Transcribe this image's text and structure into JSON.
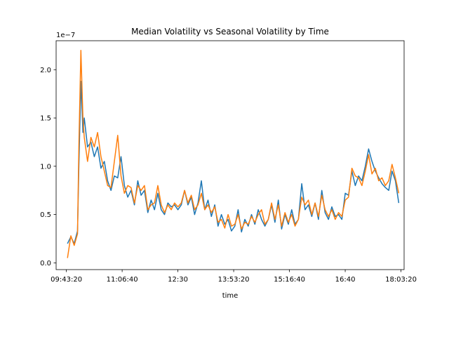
{
  "chart_data": {
    "type": "line",
    "title": "Median Volatility vs Seasonal Volatility by Time",
    "xlabel": "time",
    "ylabel": "",
    "y_scale_text": "1e−7",
    "grid": false,
    "legend": "none",
    "xlim": [
      "09:28:00",
      "18:08:00"
    ],
    "ylim": [
      -0.07,
      2.3
    ],
    "xticks": [
      "09:43:20",
      "11:06:40",
      "12:30",
      "13:53:20",
      "15:16:40",
      "16:40",
      "18:03:20"
    ],
    "yticks": [
      "0.0",
      "0.5",
      "1.0",
      "1.5",
      "2.0"
    ],
    "colors": [
      "#1f77b4",
      "#ff7f0e"
    ],
    "x": [
      "09:45",
      "09:50",
      "09:55",
      "10:00",
      "10:02",
      "10:05",
      "10:08",
      "10:10",
      "10:15",
      "10:20",
      "10:25",
      "10:30",
      "10:35",
      "10:40",
      "10:45",
      "10:50",
      "10:55",
      "11:00",
      "11:05",
      "11:10",
      "11:15",
      "11:20",
      "11:25",
      "11:30",
      "11:35",
      "11:40",
      "11:45",
      "11:50",
      "11:55",
      "12:00",
      "12:05",
      "12:10",
      "12:15",
      "12:20",
      "12:25",
      "12:30",
      "12:35",
      "12:40",
      "12:45",
      "12:50",
      "12:55",
      "13:00",
      "13:05",
      "13:10",
      "13:15",
      "13:20",
      "13:25",
      "13:30",
      "13:35",
      "13:40",
      "13:45",
      "13:50",
      "13:55",
      "14:00",
      "14:05",
      "14:10",
      "14:15",
      "14:20",
      "14:25",
      "14:30",
      "14:35",
      "14:40",
      "14:45",
      "14:50",
      "14:55",
      "15:00",
      "15:05",
      "15:10",
      "15:15",
      "15:20",
      "15:25",
      "15:30",
      "15:35",
      "15:40",
      "15:45",
      "15:50",
      "15:55",
      "16:00",
      "16:05",
      "16:10",
      "16:15",
      "16:20",
      "16:25",
      "16:30",
      "16:35",
      "16:40",
      "16:45",
      "16:50",
      "16:55",
      "17:00",
      "17:05",
      "17:10",
      "17:15",
      "17:20",
      "17:25",
      "17:30",
      "17:35",
      "17:40",
      "17:45",
      "17:50",
      "17:55",
      "18:00"
    ],
    "series": [
      {
        "values": [
          0.2,
          0.27,
          0.2,
          0.33,
          1.0,
          1.88,
          1.35,
          1.5,
          1.2,
          1.25,
          1.1,
          1.2,
          0.98,
          1.05,
          0.85,
          0.75,
          0.9,
          0.88,
          1.1,
          0.8,
          0.68,
          0.75,
          0.6,
          0.85,
          0.7,
          0.75,
          0.52,
          0.65,
          0.55,
          0.72,
          0.55,
          0.5,
          0.62,
          0.58,
          0.6,
          0.55,
          0.6,
          0.75,
          0.6,
          0.68,
          0.5,
          0.62,
          0.85,
          0.55,
          0.65,
          0.48,
          0.6,
          0.38,
          0.5,
          0.4,
          0.45,
          0.33,
          0.38,
          0.55,
          0.32,
          0.45,
          0.38,
          0.5,
          0.4,
          0.55,
          0.45,
          0.38,
          0.45,
          0.6,
          0.42,
          0.65,
          0.35,
          0.5,
          0.4,
          0.55,
          0.4,
          0.45,
          0.82,
          0.55,
          0.6,
          0.48,
          0.62,
          0.45,
          0.75,
          0.52,
          0.45,
          0.58,
          0.48,
          0.5,
          0.45,
          0.72,
          0.7,
          0.95,
          0.8,
          0.9,
          0.85,
          1.0,
          1.18,
          1.05,
          0.95,
          0.88,
          0.82,
          0.78,
          0.75,
          0.95,
          0.85,
          0.62
        ]
      },
      {
        "values": [
          0.05,
          0.28,
          0.18,
          0.3,
          1.2,
          2.2,
          1.5,
          1.3,
          1.05,
          1.3,
          1.2,
          1.35,
          1.1,
          0.95,
          0.8,
          0.78,
          1.05,
          1.32,
          0.9,
          0.72,
          0.8,
          0.78,
          0.62,
          0.8,
          0.75,
          0.8,
          0.55,
          0.6,
          0.62,
          0.8,
          0.6,
          0.52,
          0.6,
          0.55,
          0.62,
          0.58,
          0.62,
          0.75,
          0.62,
          0.7,
          0.55,
          0.6,
          0.72,
          0.55,
          0.6,
          0.52,
          0.58,
          0.42,
          0.45,
          0.36,
          0.5,
          0.38,
          0.4,
          0.5,
          0.35,
          0.42,
          0.4,
          0.48,
          0.42,
          0.5,
          0.55,
          0.4,
          0.45,
          0.62,
          0.45,
          0.6,
          0.38,
          0.52,
          0.42,
          0.5,
          0.38,
          0.45,
          0.68,
          0.6,
          0.65,
          0.5,
          0.62,
          0.48,
          0.7,
          0.55,
          0.48,
          0.55,
          0.45,
          0.52,
          0.48,
          0.65,
          0.68,
          0.98,
          0.9,
          0.88,
          0.8,
          0.95,
          1.12,
          0.92,
          0.98,
          0.85,
          0.88,
          0.8,
          0.85,
          1.02,
          0.88,
          0.72
        ]
      }
    ]
  }
}
